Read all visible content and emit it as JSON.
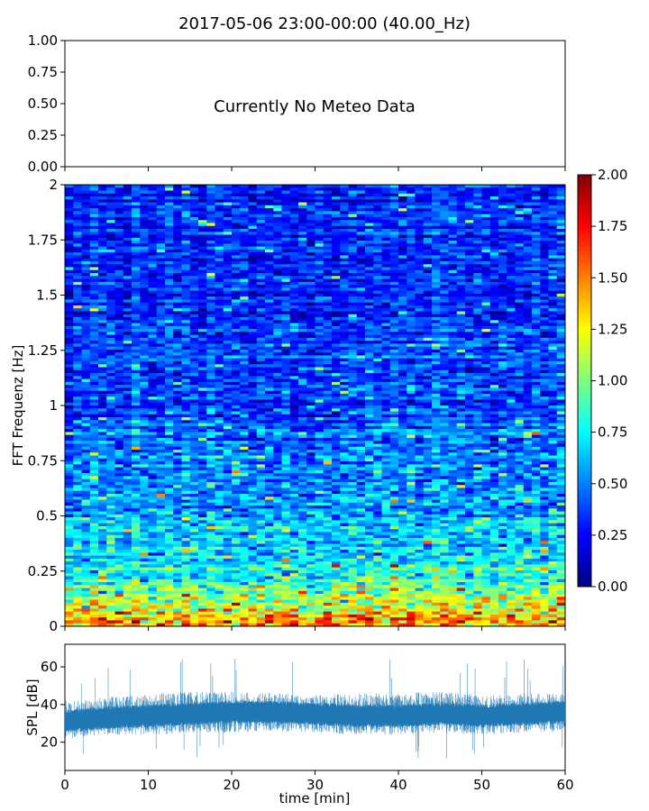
{
  "title": "2017-05-06 23:00-00:00 (40.00_Hz)",
  "chart_data": [
    {
      "type": "line",
      "panel": "meteo",
      "annotation": "Currently No Meteo Data",
      "ylim": [
        0,
        1
      ],
      "yticks": [
        "0.00",
        "0.25",
        "0.50",
        "0.75",
        "1.00"
      ],
      "xlim": [
        0,
        60
      ],
      "series": []
    },
    {
      "type": "heatmap",
      "panel": "spectrogram",
      "ylabel": "FFT Frequenz [Hz]",
      "ylim": [
        0,
        2
      ],
      "yticks": [
        "0",
        "0.25",
        "0.5",
        "0.75",
        "1",
        "1.25",
        "1.5",
        "1.75",
        "2"
      ],
      "xlim": [
        0,
        60
      ],
      "colormap": "jet",
      "colorbar": {
        "range": [
          0,
          2
        ],
        "ticks": [
          "0.00",
          "0.25",
          "0.50",
          "0.75",
          "1.00",
          "1.25",
          "1.50",
          "1.75",
          "2.00"
        ]
      },
      "value_profile": {
        "freq_hz": [
          0,
          0.05,
          0.1,
          0.15,
          0.25,
          0.35,
          0.5,
          0.75,
          1.0,
          1.25,
          1.5,
          1.75,
          2.0
        ],
        "mean_value": [
          1.45,
          1.3,
          1.1,
          0.95,
          0.78,
          0.68,
          0.58,
          0.48,
          0.4,
          0.36,
          0.33,
          0.32,
          0.32
        ]
      }
    },
    {
      "type": "area",
      "panel": "spl",
      "xlabel": "time [min]",
      "ylabel": "SPL [dB]",
      "xlim": [
        0,
        60
      ],
      "ylim": [
        5,
        72
      ],
      "xticks": [
        "0",
        "10",
        "20",
        "30",
        "40",
        "50",
        "60"
      ],
      "yticks": [
        "20",
        "40",
        "60"
      ],
      "color": "#1f77b4",
      "series": [
        {
          "x": [
            0,
            5,
            10,
            15,
            20,
            25,
            30,
            35,
            40,
            45,
            50,
            55,
            60
          ],
          "mean": [
            31,
            33,
            34,
            35,
            36,
            36,
            35,
            34,
            34,
            35,
            34,
            35,
            36
          ],
          "low": [
            22,
            24,
            24,
            25,
            25,
            26,
            25,
            24,
            24,
            25,
            24,
            25,
            26
          ],
          "high": [
            42,
            44,
            46,
            47,
            47,
            46,
            45,
            46,
            46,
            47,
            45,
            46,
            46
          ]
        }
      ]
    }
  ]
}
